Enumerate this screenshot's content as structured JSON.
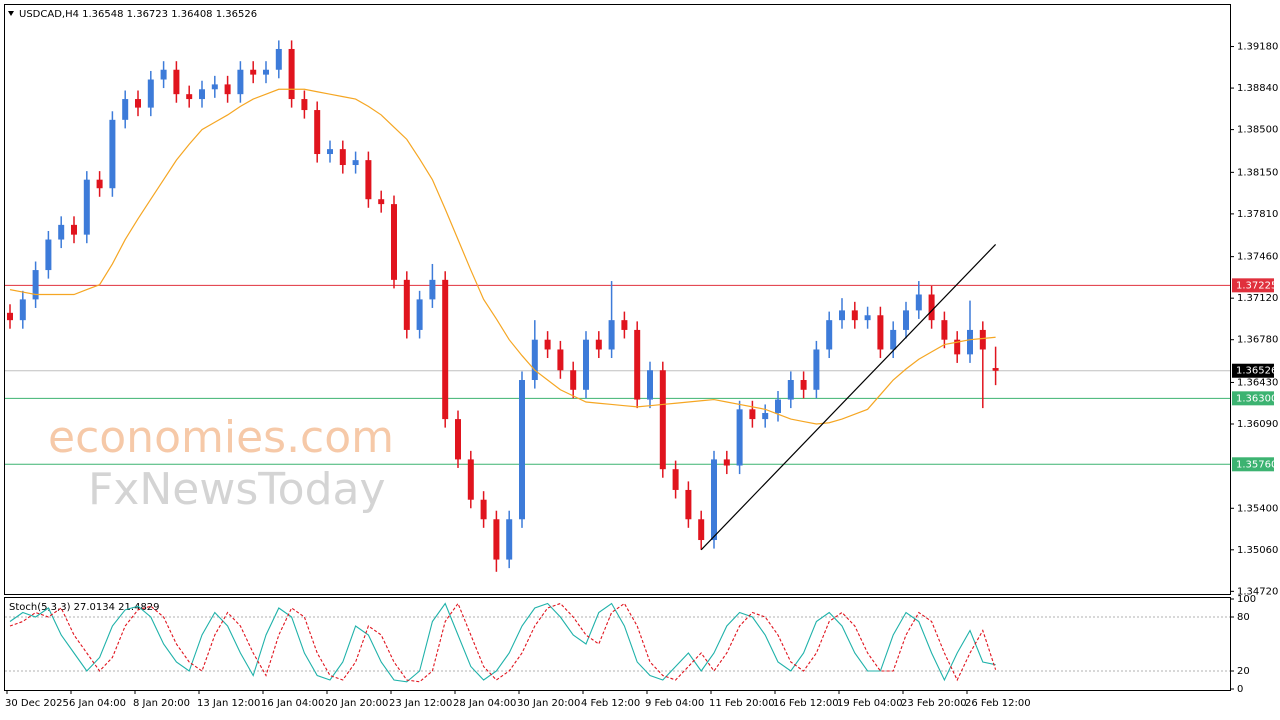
{
  "chart_data": [
    {
      "type": "candlestick",
      "title": "USDCAD,H4 1.36548 1.36723 1.36408 1.36526",
      "annotations": [
        "economies.com",
        "FxNewsToday"
      ],
      "categories": [
        "30 Dec 2025",
        null,
        null,
        null,
        null,
        "6 Jan 04:00",
        null,
        null,
        null,
        null,
        "8 Jan 20:00",
        null,
        null,
        null,
        null,
        "13 Jan 12:00",
        null,
        null,
        null,
        null,
        "16 Jan 04:00",
        null,
        null,
        null,
        null,
        "20 Jan 20:00",
        null,
        null,
        null,
        null,
        "23 Jan 12:00",
        null,
        null,
        null,
        null,
        "28 Jan 04:00",
        null,
        null,
        null,
        null,
        "30 Jan 20:00",
        null,
        null,
        null,
        null,
        "4 Feb 12:00",
        null,
        null,
        null,
        null,
        "9 Feb 04:00",
        null,
        null,
        null,
        null,
        "11 Feb 20:00",
        null,
        null,
        null,
        null,
        "16 Feb 12:00",
        null,
        null,
        null,
        null,
        "19 Feb 04:00",
        null,
        null,
        null,
        null,
        "23 Feb 20:00",
        null,
        null,
        null,
        null,
        "26 Feb 12:00",
        null,
        null
      ],
      "ohlc": [
        [
          1.37,
          1.3707,
          1.3687,
          1.3694
        ],
        [
          1.3694,
          1.3718,
          1.3687,
          1.3711
        ],
        [
          1.3711,
          1.3742,
          1.3704,
          1.3735
        ],
        [
          1.3735,
          1.3767,
          1.3728,
          1.376
        ],
        [
          1.376,
          1.3779,
          1.3753,
          1.3772
        ],
        [
          1.3772,
          1.3779,
          1.3757,
          1.3764
        ],
        [
          1.3764,
          1.3816,
          1.3757,
          1.3809
        ],
        [
          1.3809,
          1.3816,
          1.3795,
          1.3802
        ],
        [
          1.3802,
          1.3865,
          1.3795,
          1.3858
        ],
        [
          1.3858,
          1.3882,
          1.3851,
          1.3875
        ],
        [
          1.3875,
          1.3882,
          1.3861,
          1.3868
        ],
        [
          1.3868,
          1.3898,
          1.3861,
          1.3891
        ],
        [
          1.3891,
          1.3906,
          1.3884,
          1.3899
        ],
        [
          1.3899,
          1.3906,
          1.3872,
          1.3879
        ],
        [
          1.3879,
          1.3886,
          1.3868,
          1.3875
        ],
        [
          1.3875,
          1.389,
          1.3868,
          1.3883
        ],
        [
          1.3883,
          1.3894,
          1.3876,
          1.3887
        ],
        [
          1.3887,
          1.3894,
          1.3872,
          1.3879
        ],
        [
          1.3879,
          1.3906,
          1.3872,
          1.3899
        ],
        [
          1.3899,
          1.3906,
          1.3888,
          1.3895
        ],
        [
          1.3895,
          1.3906,
          1.3888,
          1.3899
        ],
        [
          1.3899,
          1.3923,
          1.3892,
          1.3916
        ],
        [
          1.3916,
          1.3923,
          1.3868,
          1.3875
        ],
        [
          1.3875,
          1.3882,
          1.3859,
          1.3866
        ],
        [
          1.3866,
          1.3873,
          1.3823,
          1.383
        ],
        [
          1.383,
          1.3841,
          1.3823,
          1.3834
        ],
        [
          1.3834,
          1.3841,
          1.3814,
          1.3821
        ],
        [
          1.3821,
          1.3832,
          1.3814,
          1.3825
        ],
        [
          1.3825,
          1.3832,
          1.3786,
          1.3793
        ],
        [
          1.3793,
          1.38,
          1.3782,
          1.3789
        ],
        [
          1.3789,
          1.3796,
          1.372,
          1.3727
        ],
        [
          1.3727,
          1.3734,
          1.3679,
          1.3686
        ],
        [
          1.3686,
          1.3718,
          1.3679,
          1.3711
        ],
        [
          1.3711,
          1.374,
          1.3704,
          1.3727
        ],
        [
          1.3727,
          1.3734,
          1.3606,
          1.3613
        ],
        [
          1.3613,
          1.362,
          1.3573,
          1.358
        ],
        [
          1.358,
          1.3587,
          1.354,
          1.3547
        ],
        [
          1.3547,
          1.3554,
          1.3524,
          1.3531
        ],
        [
          1.3531,
          1.3538,
          1.3488,
          1.3498
        ],
        [
          1.3498,
          1.3538,
          1.3491,
          1.3531
        ],
        [
          1.3531,
          1.3652,
          1.3524,
          1.3645
        ],
        [
          1.3645,
          1.3694,
          1.3638,
          1.3678
        ],
        [
          1.3678,
          1.3685,
          1.3663,
          1.367
        ],
        [
          1.367,
          1.3677,
          1.3646,
          1.3653
        ],
        [
          1.3653,
          1.366,
          1.363,
          1.3637
        ],
        [
          1.3637,
          1.3685,
          1.363,
          1.3678
        ],
        [
          1.3678,
          1.3685,
          1.3663,
          1.367
        ],
        [
          1.367,
          1.3726,
          1.3663,
          1.3694
        ],
        [
          1.3694,
          1.3701,
          1.3679,
          1.3686
        ],
        [
          1.3686,
          1.3693,
          1.3622,
          1.3629
        ],
        [
          1.3629,
          1.366,
          1.3622,
          1.3653
        ],
        [
          1.3653,
          1.366,
          1.3565,
          1.3572
        ],
        [
          1.3572,
          1.3579,
          1.3548,
          1.3555
        ],
        [
          1.3555,
          1.3562,
          1.3524,
          1.3531
        ],
        [
          1.3531,
          1.3538,
          1.3506,
          1.3514
        ],
        [
          1.3514,
          1.3587,
          1.3507,
          1.358
        ],
        [
          1.358,
          1.3587,
          1.3568,
          1.3575
        ],
        [
          1.3575,
          1.3628,
          1.3568,
          1.3621
        ],
        [
          1.3621,
          1.3628,
          1.3606,
          1.3613
        ],
        [
          1.3613,
          1.3625,
          1.3606,
          1.3618
        ],
        [
          1.3618,
          1.3636,
          1.3611,
          1.3629
        ],
        [
          1.3629,
          1.3652,
          1.3622,
          1.3645
        ],
        [
          1.3645,
          1.3652,
          1.363,
          1.3637
        ],
        [
          1.3637,
          1.3677,
          1.363,
          1.367
        ],
        [
          1.367,
          1.3701,
          1.3663,
          1.3694
        ],
        [
          1.3694,
          1.3712,
          1.3687,
          1.3702
        ],
        [
          1.3702,
          1.3709,
          1.3687,
          1.3694
        ],
        [
          1.3694,
          1.3705,
          1.3687,
          1.3698
        ],
        [
          1.3698,
          1.3705,
          1.3663,
          1.367
        ],
        [
          1.367,
          1.3693,
          1.3663,
          1.3686
        ],
        [
          1.3686,
          1.3709,
          1.3679,
          1.3702
        ],
        [
          1.3702,
          1.3726,
          1.3695,
          1.3715
        ],
        [
          1.3715,
          1.3722,
          1.3687,
          1.3694
        ],
        [
          1.3694,
          1.3701,
          1.3671,
          1.3678
        ],
        [
          1.3678,
          1.3685,
          1.3659,
          1.3666
        ],
        [
          1.3666,
          1.371,
          1.3659,
          1.3686
        ],
        [
          1.3686,
          1.3693,
          1.3622,
          1.367
        ],
        [
          1.36548,
          1.36723,
          1.36408,
          1.36526
        ]
      ],
      "up_color": "#3d7bd9",
      "down_color": "#e0141e",
      "moving_average": {
        "color": "#f5a623",
        "values": [
          1.3719,
          1.3717,
          1.3715,
          1.3715,
          1.3715,
          1.3715,
          1.3719,
          1.3723,
          1.374,
          1.376,
          1.3777,
          1.3793,
          1.3809,
          1.3825,
          1.3838,
          1.385,
          1.3856,
          1.3862,
          1.3869,
          1.3875,
          1.3879,
          1.3883,
          1.3883,
          1.3883,
          1.3881,
          1.3879,
          1.3877,
          1.3875,
          1.3869,
          1.3862,
          1.3852,
          1.3842,
          1.3826,
          1.3809,
          1.3785,
          1.376,
          1.3735,
          1.3711,
          1.3695,
          1.3678,
          1.3665,
          1.3653,
          1.3645,
          1.3637,
          1.3632,
          1.3627,
          1.3626,
          1.3625,
          1.3624,
          1.3623,
          1.3624,
          1.3625,
          1.3626,
          1.3627,
          1.3628,
          1.3629,
          1.3627,
          1.3625,
          1.3623,
          1.3621,
          1.3617,
          1.3613,
          1.3611,
          1.3609,
          1.361,
          1.3613,
          1.3617,
          1.3621,
          1.3633,
          1.3645,
          1.3654,
          1.3662,
          1.3668,
          1.3674,
          1.3676,
          1.3678,
          1.3679,
          1.368
        ]
      },
      "trendline": {
        "color": "#000000",
        "start": [
          54,
          1.3506
        ],
        "end": [
          77,
          1.3756
        ]
      },
      "levels": [
        {
          "value": 1.37225,
          "label": "1.37225",
          "color": "#e0303c"
        },
        {
          "value": 1.36526,
          "label": "1.36526",
          "color": "#000000"
        },
        {
          "value": 1.363,
          "label": "1.36300",
          "color": "#3cb371"
        },
        {
          "value": 1.3576,
          "label": "1.35760",
          "color": "#3cb371"
        }
      ],
      "ylim": [
        1.3469,
        1.3952
      ],
      "yticks": [
        {
          "value": 1.3918,
          "label": "1.39180"
        },
        {
          "value": 1.3884,
          "label": "1.38840"
        },
        {
          "value": 1.385,
          "label": "1.38500"
        },
        {
          "value": 1.3815,
          "label": "1.38150"
        },
        {
          "value": 1.3781,
          "label": "1.37810"
        },
        {
          "value": 1.3746,
          "label": "1.37460"
        },
        {
          "value": 1.3712,
          "label": "1.37120"
        },
        {
          "value": 1.3678,
          "label": "1.36780"
        },
        {
          "value": 1.3643,
          "label": "1.36430"
        },
        {
          "value": 1.3609,
          "label": "1.36090"
        },
        {
          "value": 1.354,
          "label": "1.35400"
        },
        {
          "value": 1.3506,
          "label": "1.35060"
        },
        {
          "value": 1.3472,
          "label": "1.34720"
        }
      ]
    },
    {
      "type": "line",
      "title": "Stoch(5,3,3) 27.0134 21.4829",
      "series": [
        {
          "name": "main",
          "color": "#20b2aa",
          "values": [
            75,
            85,
            80,
            90,
            60,
            40,
            20,
            35,
            70,
            88,
            92,
            80,
            50,
            30,
            20,
            60,
            85,
            70,
            40,
            15,
            60,
            90,
            80,
            40,
            15,
            10,
            30,
            70,
            60,
            30,
            10,
            8,
            20,
            75,
            95,
            60,
            25,
            10,
            20,
            40,
            70,
            90,
            95,
            80,
            60,
            50,
            85,
            95,
            70,
            30,
            15,
            10,
            25,
            40,
            20,
            40,
            70,
            85,
            80,
            60,
            30,
            20,
            40,
            75,
            85,
            70,
            40,
            20,
            20,
            60,
            85,
            75,
            40,
            10,
            40,
            65,
            30,
            27.0134
          ]
        },
        {
          "name": "signal",
          "color": "#e0141e",
          "values": [
            70,
            75,
            85,
            80,
            90,
            60,
            40,
            20,
            35,
            70,
            88,
            92,
            80,
            50,
            30,
            20,
            60,
            85,
            70,
            40,
            15,
            60,
            90,
            80,
            40,
            15,
            10,
            30,
            70,
            60,
            30,
            10,
            8,
            20,
            75,
            95,
            60,
            25,
            10,
            20,
            40,
            70,
            90,
            95,
            80,
            60,
            50,
            85,
            95,
            70,
            30,
            15,
            10,
            25,
            40,
            20,
            40,
            70,
            85,
            80,
            60,
            30,
            20,
            40,
            75,
            85,
            70,
            40,
            20,
            20,
            60,
            85,
            75,
            40,
            10,
            40,
            65,
            21.4829
          ]
        }
      ],
      "levels": [
        80,
        20
      ],
      "ylim": [
        0,
        100
      ],
      "yticks": [
        100,
        80,
        20,
        0
      ]
    }
  ]
}
